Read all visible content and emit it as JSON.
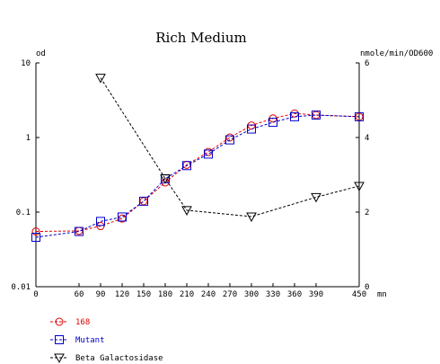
{
  "chart_data": {
    "type": "line",
    "title": "Rich Medium",
    "y_left_label": "od",
    "y_right_label": "nmole/min/OD600",
    "x_unit": "mn",
    "x_ticks": [
      0,
      60,
      90,
      120,
      150,
      180,
      210,
      240,
      270,
      300,
      330,
      360,
      390,
      450
    ],
    "xlim": [
      0,
      450
    ],
    "y_left_scale": "log",
    "y_left_ticks": [
      "0.01",
      "0.1",
      "1",
      "10"
    ],
    "y_left_lim": [
      0.01,
      10
    ],
    "y_right_ticks": [
      0,
      2,
      4,
      6
    ],
    "y_right_lim": [
      0,
      6
    ],
    "grid": false,
    "legend_position": "bottom-left",
    "series": [
      {
        "name": "168",
        "axis": "left",
        "marker": "circle",
        "color": "#e00000",
        "x": [
          0,
          60,
          90,
          120,
          150,
          180,
          210,
          240,
          270,
          300,
          330,
          360,
          390,
          450
        ],
        "y": [
          0.055,
          0.056,
          0.065,
          0.082,
          0.14,
          0.25,
          0.43,
          0.64,
          1.0,
          1.45,
          1.8,
          2.1,
          2.0,
          1.9
        ]
      },
      {
        "name": "Mutant",
        "axis": "left",
        "marker": "square",
        "color": "#0000cc",
        "x": [
          0,
          60,
          90,
          120,
          150,
          180,
          210,
          240,
          270,
          300,
          330,
          360,
          390,
          450
        ],
        "y": [
          0.046,
          0.055,
          0.075,
          0.086,
          0.14,
          0.28,
          0.42,
          0.6,
          0.93,
          1.3,
          1.6,
          1.9,
          2.0,
          1.9
        ]
      },
      {
        "name": "Beta Galactosidase",
        "axis": "right",
        "marker": "triangle-down",
        "color": "#000000",
        "x": [
          90,
          180,
          210,
          300,
          390,
          450
        ],
        "y": [
          5.6,
          2.9,
          2.05,
          1.88,
          2.4,
          2.7
        ]
      }
    ]
  }
}
